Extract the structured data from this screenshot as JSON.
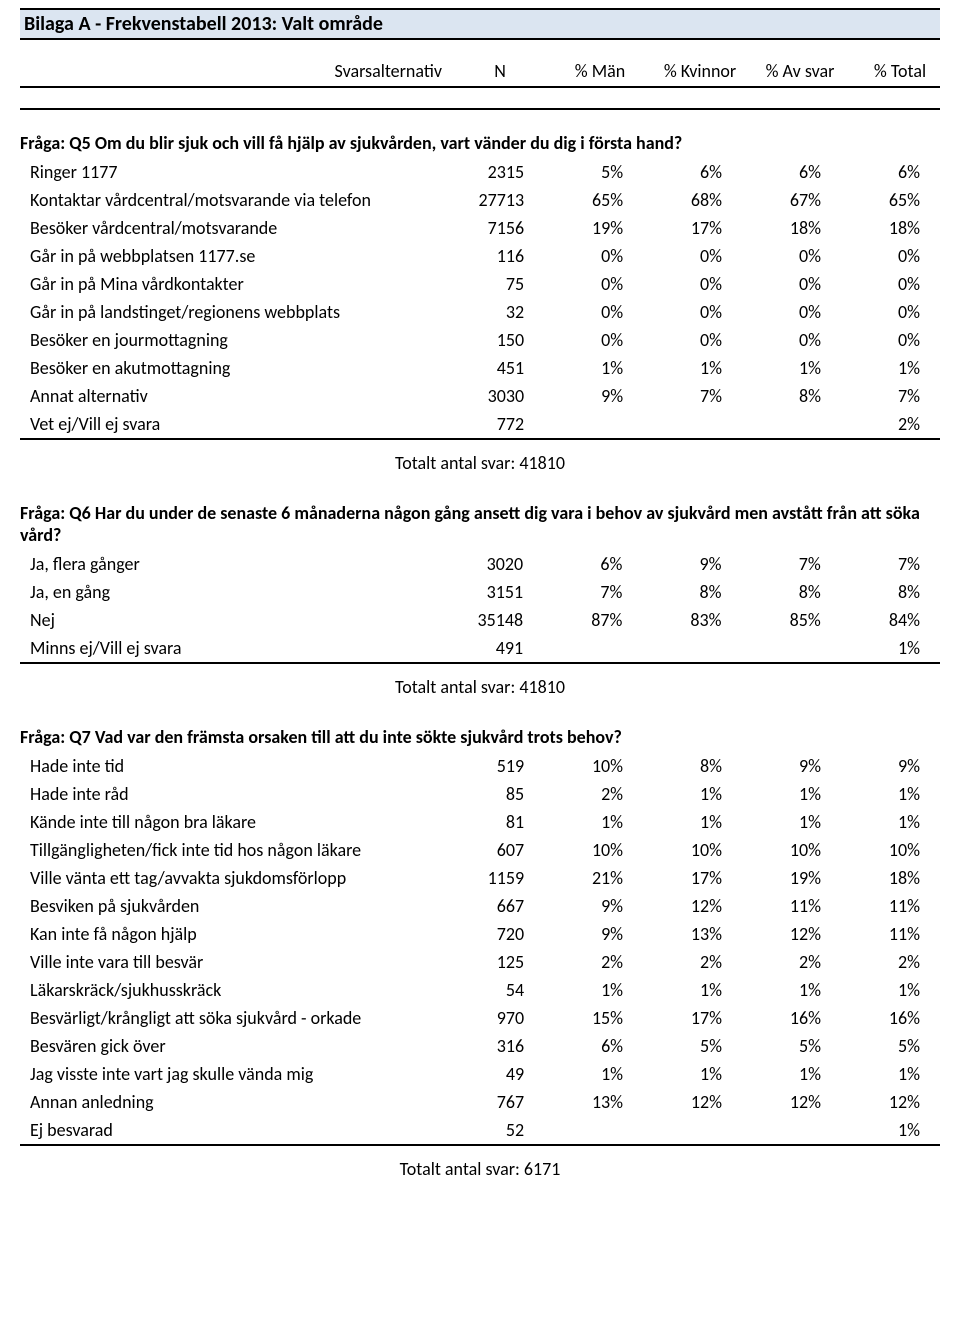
{
  "title": "Bilaga A - Frekvenstabell 2013: Valt område",
  "header": {
    "svarsalternativ": "Svarsalternativ",
    "n": "N",
    "man": "% Män",
    "kvinnor": "% Kvinnor",
    "avsvar": "% Av svar",
    "total": "% Total"
  },
  "q5": {
    "question": "Fråga: Q5 Om du blir sjuk och vill få hjälp av sjukvården, vart vänder du dig i första hand?",
    "rows": [
      {
        "label": "Ringer 1177",
        "n": "2315",
        "man": "5%",
        "kv": "6%",
        "av": "6%",
        "tot": "6%"
      },
      {
        "label": "Kontaktar vårdcentral/motsvarande via telefon",
        "n": "27713",
        "man": "65%",
        "kv": "68%",
        "av": "67%",
        "tot": "65%"
      },
      {
        "label": "Besöker vårdcentral/motsvarande",
        "n": "7156",
        "man": "19%",
        "kv": "17%",
        "av": "18%",
        "tot": "18%"
      },
      {
        "label": "Går in på webbplatsen 1177.se",
        "n": "116",
        "man": "0%",
        "kv": "0%",
        "av": "0%",
        "tot": "0%"
      },
      {
        "label": "Går in på Mina vårdkontakter",
        "n": "75",
        "man": "0%",
        "kv": "0%",
        "av": "0%",
        "tot": "0%"
      },
      {
        "label": "Går in på landstinget/regionens webbplats",
        "n": "32",
        "man": "0%",
        "kv": "0%",
        "av": "0%",
        "tot": "0%"
      },
      {
        "label": "Besöker en jourmottagning",
        "n": "150",
        "man": "0%",
        "kv": "0%",
        "av": "0%",
        "tot": "0%"
      },
      {
        "label": "Besöker en akutmottagning",
        "n": "451",
        "man": "1%",
        "kv": "1%",
        "av": "1%",
        "tot": "1%"
      },
      {
        "label": "Annat alternativ",
        "n": "3030",
        "man": "9%",
        "kv": "7%",
        "av": "8%",
        "tot": "7%"
      },
      {
        "label": "Vet ej/Vill ej svara",
        "n": "772",
        "man": "",
        "kv": "",
        "av": "",
        "tot": "2%"
      }
    ],
    "total": "Totalt antal svar: 41810"
  },
  "q6": {
    "question": "Fråga: Q6 Har du under de senaste 6 månaderna någon gång ansett dig vara i behov av sjukvård men avstått från att söka vård?",
    "rows": [
      {
        "label": "Ja, flera gånger",
        "n": "3020",
        "man": "6%",
        "kv": "9%",
        "av": "7%",
        "tot": "7%"
      },
      {
        "label": "Ja, en gång",
        "n": "3151",
        "man": "7%",
        "kv": "8%",
        "av": "8%",
        "tot": "8%"
      },
      {
        "label": "Nej",
        "n": "35148",
        "man": "87%",
        "kv": "83%",
        "av": "85%",
        "tot": "84%"
      },
      {
        "label": "Minns ej/Vill ej svara",
        "n": "491",
        "man": "",
        "kv": "",
        "av": "",
        "tot": "1%"
      }
    ],
    "total": "Totalt antal svar: 41810"
  },
  "q7": {
    "question": "Fråga: Q7 Vad var den främsta orsaken till att du inte sökte sjukvård trots behov?",
    "rows": [
      {
        "label": "Hade inte tid",
        "n": "519",
        "man": "10%",
        "kv": "8%",
        "av": "9%",
        "tot": "9%"
      },
      {
        "label": "Hade inte råd",
        "n": "85",
        "man": "2%",
        "kv": "1%",
        "av": "1%",
        "tot": "1%"
      },
      {
        "label": "Kände inte till någon bra läkare",
        "n": "81",
        "man": "1%",
        "kv": "1%",
        "av": "1%",
        "tot": "1%"
      },
      {
        "label": "Tillgängligheten/fick inte tid hos någon läkare",
        "n": "607",
        "man": "10%",
        "kv": "10%",
        "av": "10%",
        "tot": "10%"
      },
      {
        "label": "Ville vänta ett tag/avvakta sjukdomsförlopp",
        "n": "1159",
        "man": "21%",
        "kv": "17%",
        "av": "19%",
        "tot": "18%"
      },
      {
        "label": "Besviken på sjukvården",
        "n": "667",
        "man": "9%",
        "kv": "12%",
        "av": "11%",
        "tot": "11%"
      },
      {
        "label": "Kan inte få någon hjälp",
        "n": "720",
        "man": "9%",
        "kv": "13%",
        "av": "12%",
        "tot": "11%"
      },
      {
        "label": "Ville inte vara till besvär",
        "n": "125",
        "man": "2%",
        "kv": "2%",
        "av": "2%",
        "tot": "2%"
      },
      {
        "label": "Läkarskräck/sjukhusskräck",
        "n": "54",
        "man": "1%",
        "kv": "1%",
        "av": "1%",
        "tot": "1%"
      },
      {
        "label": "Besvärligt/krångligt att söka sjukvård - orkade",
        "n": "970",
        "man": "15%",
        "kv": "17%",
        "av": "16%",
        "tot": "16%"
      },
      {
        "label": "Besvären gick över",
        "n": "316",
        "man": "6%",
        "kv": "5%",
        "av": "5%",
        "tot": "5%"
      },
      {
        "label": "Jag visste inte vart jag skulle vända mig",
        "n": "49",
        "man": "1%",
        "kv": "1%",
        "av": "1%",
        "tot": "1%"
      },
      {
        "label": "Annan anledning",
        "n": "767",
        "man": "13%",
        "kv": "12%",
        "av": "12%",
        "tot": "12%"
      },
      {
        "label": "Ej besvarad",
        "n": "52",
        "man": "",
        "kv": "",
        "av": "",
        "tot": "1%"
      }
    ],
    "total": "Totalt antal svar: 6171"
  },
  "colors": {
    "title_bg": "#dbe5f1",
    "border": "#000000",
    "bg": "#ffffff",
    "text": "#000000"
  },
  "fonts": {
    "family": "Calibri",
    "title_size_pt": 15,
    "body_size_pt": 13
  }
}
